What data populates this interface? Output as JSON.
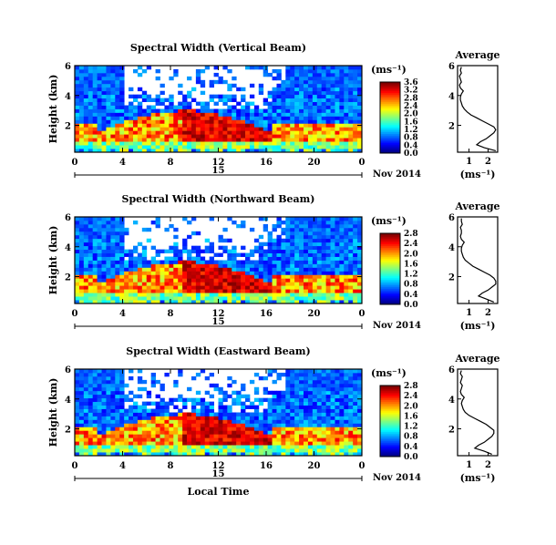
{
  "chart_data": [
    {
      "type": "heatmap",
      "title": "Spectral Width (Vertical Beam)",
      "ylabel": "Height (km)",
      "xlim": [
        0,
        24
      ],
      "ylim": [
        0.2,
        6.0
      ],
      "x_ticks": [
        "0",
        "4",
        "8",
        "12",
        "16",
        "20",
        "0"
      ],
      "y_ticks": [
        "2",
        "4",
        "6"
      ],
      "day_label": "15",
      "date_label": "Nov 2014",
      "colorbar": {
        "unit": "(ms⁻¹)",
        "ticks": [
          "0.0",
          "0.4",
          "0.8",
          "1.2",
          "1.6",
          "2.0",
          "2.4",
          "2.8",
          "3.2",
          "3.6"
        ],
        "range": [
          0,
          3.6
        ]
      },
      "profile": {
        "title": "Average",
        "xlabel": "(ms⁻¹)",
        "x_ticks": [
          "1",
          "2"
        ],
        "y_ticks": [
          "2",
          "4",
          "6"
        ],
        "xlim": [
          0.4,
          2.5
        ],
        "ylim": [
          0.2,
          6.0
        ],
        "heights": [
          0.3,
          0.5,
          0.7,
          0.9,
          1.1,
          1.3,
          1.5,
          1.7,
          1.9,
          2.1,
          2.3,
          2.5,
          2.7,
          2.9,
          3.1,
          3.3,
          3.5,
          3.7,
          3.9,
          4.1,
          4.3,
          4.5,
          4.7,
          4.9,
          5.1,
          5.3,
          5.5,
          5.7,
          5.9
        ],
        "values": [
          2.4,
          1.8,
          1.4,
          1.6,
          1.9,
          2.1,
          2.3,
          2.4,
          2.3,
          2.0,
          1.7,
          1.4,
          1.1,
          0.9,
          0.75,
          0.65,
          0.6,
          0.55,
          0.55,
          0.6,
          0.7,
          0.55,
          0.5,
          0.6,
          0.55,
          0.5,
          0.6,
          0.55,
          0.6
        ]
      }
    },
    {
      "type": "heatmap",
      "title": "Spectral Width (Northward Beam)",
      "ylabel": "Height (km)",
      "xlim": [
        0,
        24
      ],
      "ylim": [
        0.2,
        6.0
      ],
      "x_ticks": [
        "0",
        "4",
        "8",
        "12",
        "16",
        "20",
        "0"
      ],
      "y_ticks": [
        "2",
        "4",
        "6"
      ],
      "day_label": "15",
      "date_label": "Nov 2014",
      "colorbar": {
        "unit": "(ms⁻¹)",
        "ticks": [
          "0.0",
          "0.4",
          "0.8",
          "1.2",
          "1.6",
          "2.0",
          "2.4",
          "2.8"
        ],
        "range": [
          0,
          2.8
        ]
      },
      "profile": {
        "title": "Average",
        "xlabel": "(ms⁻¹)",
        "x_ticks": [
          "1",
          "2"
        ],
        "y_ticks": [
          "2",
          "4",
          "6"
        ],
        "xlim": [
          0.4,
          2.5
        ],
        "ylim": [
          0.2,
          6.0
        ],
        "heights": [
          0.3,
          0.5,
          0.7,
          0.9,
          1.1,
          1.3,
          1.5,
          1.7,
          1.9,
          2.1,
          2.3,
          2.5,
          2.7,
          2.9,
          3.1,
          3.3,
          3.5,
          3.7,
          3.9,
          4.1,
          4.3,
          4.5,
          4.7,
          4.9,
          5.1,
          5.3,
          5.5,
          5.7,
          5.9
        ],
        "values": [
          2.3,
          1.9,
          1.5,
          1.7,
          2.0,
          2.2,
          2.4,
          2.4,
          2.3,
          2.1,
          1.8,
          1.5,
          1.2,
          1.0,
          0.8,
          0.7,
          0.65,
          0.6,
          0.6,
          0.65,
          0.75,
          0.6,
          0.55,
          0.6,
          0.6,
          0.55,
          0.65,
          0.6,
          0.6
        ]
      }
    },
    {
      "type": "heatmap",
      "title": "Spectral Width (Eastward Beam)",
      "ylabel": "Height (km)",
      "xlim": [
        0,
        24
      ],
      "ylim": [
        0.2,
        6.0
      ],
      "x_ticks": [
        "0",
        "4",
        "8",
        "12",
        "16",
        "20",
        "0"
      ],
      "y_ticks": [
        "2",
        "4",
        "6"
      ],
      "day_label": "15",
      "date_label": "Nov 2014",
      "xlabel": "Local Time",
      "colorbar": {
        "unit": "(ms⁻¹)",
        "ticks": [
          "0.0",
          "0.4",
          "0.8",
          "1.2",
          "1.6",
          "2.0",
          "2.4",
          "2.8"
        ],
        "range": [
          0,
          2.8
        ]
      },
      "profile": {
        "title": "Average",
        "xlabel": "(ms⁻¹)",
        "x_ticks": [
          "1",
          "2"
        ],
        "y_ticks": [
          "2",
          "4",
          "6"
        ],
        "xlim": [
          0.4,
          2.5
        ],
        "ylim": [
          0.2,
          6.0
        ],
        "heights": [
          0.3,
          0.5,
          0.7,
          0.9,
          1.1,
          1.3,
          1.5,
          1.7,
          1.9,
          2.1,
          2.3,
          2.5,
          2.7,
          2.9,
          3.1,
          3.3,
          3.5,
          3.7,
          3.9,
          4.1,
          4.3,
          4.5,
          4.7,
          4.9,
          5.1,
          5.3,
          5.5,
          5.7,
          5.9
        ],
        "values": [
          2.2,
          1.8,
          1.3,
          1.5,
          1.8,
          2.0,
          2.2,
          2.3,
          2.3,
          2.1,
          1.9,
          1.6,
          1.3,
          1.0,
          0.8,
          0.7,
          0.65,
          0.6,
          0.65,
          0.75,
          0.6,
          0.55,
          0.6,
          0.65,
          0.55,
          0.6,
          0.65,
          0.55,
          0.6
        ]
      }
    }
  ]
}
